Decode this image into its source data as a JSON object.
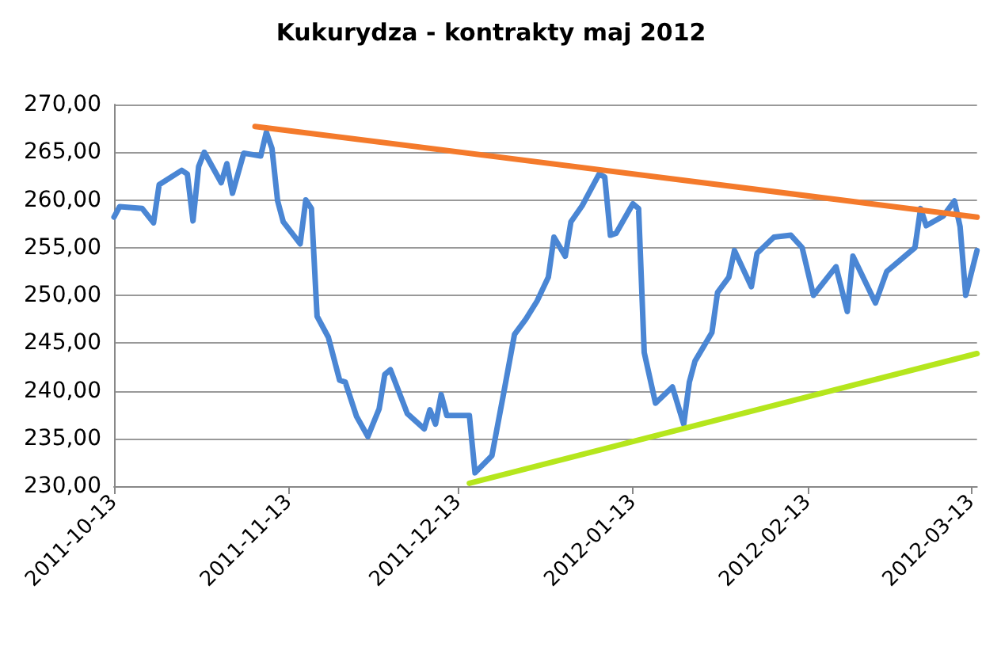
{
  "chart_data": {
    "type": "line",
    "title": "Kukurydza - kontrakty maj 2012",
    "xlim": [
      "2011-10-13",
      "2012-03-14"
    ],
    "xticks": [
      "2011-10-13",
      "2011-11-13",
      "2011-12-13",
      "2012-01-13",
      "2012-02-13",
      "2012-03-13"
    ],
    "ylim": [
      230,
      270
    ],
    "yticks": [
      {
        "value": 230,
        "label": "230,00"
      },
      {
        "value": 235,
        "label": "235,00"
      },
      {
        "value": 240,
        "label": "240,00"
      },
      {
        "value": 245,
        "label": "245,00"
      },
      {
        "value": 250,
        "label": "250,00"
      },
      {
        "value": 255,
        "label": "255,00"
      },
      {
        "value": 260,
        "label": "260,00"
      },
      {
        "value": 265,
        "label": "265,00"
      },
      {
        "value": 270,
        "label": "270,00"
      }
    ],
    "grid": "y",
    "marker": "none",
    "line_style": "solid",
    "series": [
      {
        "color": "#4a86d4",
        "x": [
          "2011-10-13",
          "2011-10-14",
          "2011-10-18",
          "2011-10-20",
          "2011-10-21",
          "2011-10-25",
          "2011-10-26",
          "2011-10-27",
          "2011-10-28",
          "2011-10-29",
          "2011-11-01",
          "2011-11-02",
          "2011-11-03",
          "2011-11-05",
          "2011-11-06",
          "2011-11-08",
          "2011-11-09",
          "2011-11-10",
          "2011-11-11",
          "2011-11-12",
          "2011-11-15",
          "2011-11-16",
          "2011-11-17",
          "2011-11-18",
          "2011-11-20",
          "2011-11-22",
          "2011-11-23",
          "2011-11-25",
          "2011-11-27",
          "2011-11-29",
          "2011-11-30",
          "2011-12-01",
          "2011-12-04",
          "2011-12-07",
          "2011-12-08",
          "2011-12-09",
          "2011-12-10",
          "2011-12-11",
          "2011-12-15",
          "2011-12-16",
          "2011-12-19",
          "2011-12-21",
          "2011-12-23",
          "2011-12-25",
          "2011-12-27",
          "2011-12-29",
          "2011-12-30",
          "2012-01-01",
          "2012-01-02",
          "2012-01-04",
          "2012-01-07",
          "2012-01-08",
          "2012-01-09",
          "2012-01-10",
          "2012-01-13",
          "2012-01-14",
          "2012-01-15",
          "2012-01-17",
          "2012-01-20",
          "2012-01-22",
          "2012-01-23",
          "2012-01-24",
          "2012-01-27",
          "2012-01-28",
          "2012-01-30",
          "2012-01-31",
          "2012-02-03",
          "2012-02-04",
          "2012-02-07",
          "2012-02-10",
          "2012-02-12",
          "2012-02-14",
          "2012-02-18",
          "2012-02-20",
          "2012-02-21",
          "2012-02-25",
          "2012-02-27",
          "2012-03-03",
          "2012-03-04",
          "2012-03-05",
          "2012-03-08",
          "2012-03-10",
          "2012-03-11",
          "2012-03-12",
          "2012-03-14"
        ],
        "values": [
          258.2,
          259.3,
          259.1,
          257.6,
          261.6,
          263.1,
          262.7,
          257.8,
          263.5,
          265,
          261.8,
          263.8,
          260.7,
          264.9,
          264.8,
          264.6,
          267.1,
          265.4,
          259.9,
          257.7,
          255.4,
          260,
          259.1,
          247.8,
          245.6,
          241.1,
          240.9,
          237.3,
          235.2,
          238.1,
          241.7,
          242.2,
          237.6,
          236,
          238,
          236.5,
          239.6,
          237.4,
          237.4,
          231.4,
          233.2,
          239.5,
          245.9,
          247.5,
          249.4,
          251.9,
          256.1,
          254.1,
          257.7,
          259.4,
          262.7,
          262.4,
          256.3,
          256.5,
          259.6,
          259.1,
          244,
          238.7,
          240.4,
          236.5,
          240.9,
          243.1,
          246.1,
          250.3,
          251.9,
          254.7,
          250.9,
          254.4,
          256.1,
          256.3,
          255,
          250,
          253,
          248.3,
          254.1,
          249.2,
          252.5,
          255,
          259.1,
          257.3,
          258.3,
          259.9,
          257.2,
          250,
          254.7
        ]
      },
      {
        "color": "#f47a2b",
        "x": [
          "2011-11-07",
          "2012-03-14"
        ],
        "values": [
          267.7,
          258.2
        ]
      },
      {
        "color": "#b5e61d",
        "x": [
          "2011-12-15",
          "2012-03-14"
        ],
        "values": [
          230.3,
          243.9
        ]
      }
    ]
  }
}
